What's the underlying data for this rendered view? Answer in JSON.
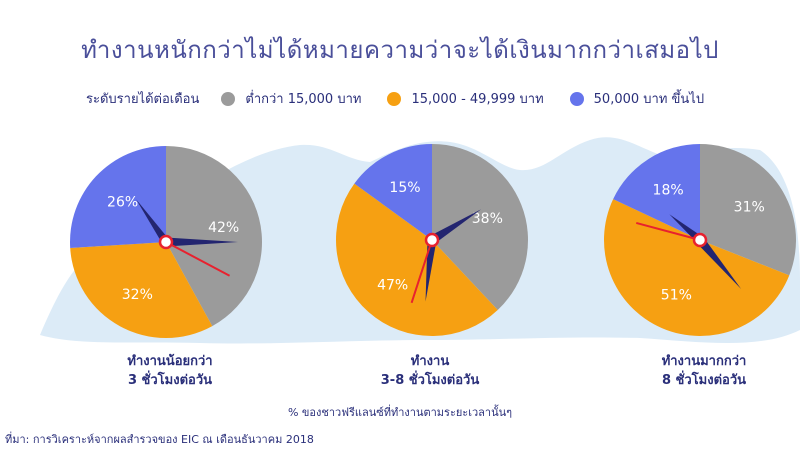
{
  "title": "ทำงานหนักกว่าไม่ได้หมายความว่าจะได้เงินมากกว่าเสมอไป",
  "legend": {
    "title": "ระดับรายได้ต่อเดือน",
    "items": [
      {
        "label": "ต่ำกว่า 15,000 บาท",
        "color": "#9b9b9b"
      },
      {
        "label": "15,000 - 49,999 บาท",
        "color": "#f6a012"
      },
      {
        "label": "50,000 บาท ขึ้นไป",
        "color": "#6574ec"
      }
    ]
  },
  "colors": {
    "low": "#9b9b9b",
    "mid": "#f6a012",
    "high": "#6574ec",
    "background_blob": "#dcebf7",
    "hand": "#232570",
    "second_hand": "#e8212e",
    "text": "#2a2f7a"
  },
  "chart_data": {
    "type": "pie",
    "series_names": [
      "ต่ำกว่า 15,000 บาท",
      "15,000 - 49,999 บาท",
      "50,000 บาท ขึ้นไป"
    ],
    "pies": [
      {
        "caption_line1": "ทำงานน้อยกว่า",
        "caption_line2": "3 ชั่วโมงต่อวัน",
        "values": [
          42,
          32,
          26
        ],
        "labels": [
          "42%",
          "32%",
          "26%"
        ]
      },
      {
        "caption_line1": "ทำงาน",
        "caption_line2": "3-8 ชั่วโมงต่อวัน",
        "values": [
          38,
          47,
          15
        ],
        "labels": [
          "38%",
          "47%",
          "15%"
        ]
      },
      {
        "caption_line1": "ทำงานมากกว่า",
        "caption_line2": "8 ชั่วโมงต่อวัน",
        "values": [
          31,
          51,
          18
        ],
        "labels": [
          "31%",
          "51%",
          "18%"
        ]
      }
    ]
  },
  "footnote": "% ของชาวฟรีแลนซ์ที่ทำงานตามระยะเวลานั้นๆ",
  "source": "ที่มา: การวิเคราะห์จากผลสำรวจของ EIC ณ เดือนธันวาคม 2018"
}
